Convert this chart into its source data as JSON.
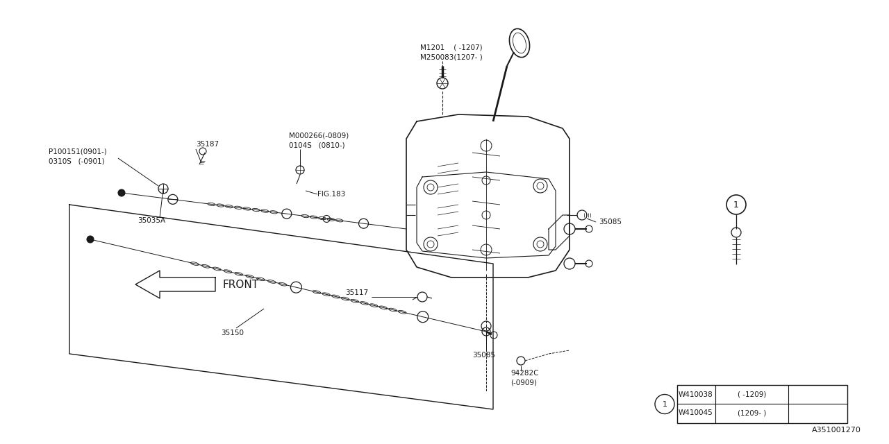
{
  "bg_color": "#ffffff",
  "line_color": "#1a1a1a",
  "font_color": "#1a1a1a",
  "diagram_id": "A351001270",
  "lw_main": 1.0,
  "lw_thick": 1.8,
  "lw_thin": 0.6,
  "font_size": 7.5,
  "label_M1201_line1": "M1201    ( -1207)",
  "label_M1201_line2": "M250083(1207- )",
  "label_35187": "35187",
  "label_M000266_line1": "M000266(-0809)",
  "label_M000266_line2": "0104S   (0810-)",
  "label_P100151_line1": "P100151(0901-)",
  "label_P100151_line2": "0310S   (-0901)",
  "label_FIG183": "FIG.183",
  "label_35035A": "35035A",
  "label_FRONT": "FRONT",
  "label_35117": "35117",
  "label_35085_top": "35085",
  "label_35150": "35150",
  "label_35085_bot": "35085",
  "label_94282C_line1": "94282C",
  "label_94282C_line2": "(-0909)",
  "table_row1_part": "W410038",
  "table_row1_range": "( -1209)",
  "table_row2_part": "W410045",
  "table_row2_range": "(1209- )"
}
